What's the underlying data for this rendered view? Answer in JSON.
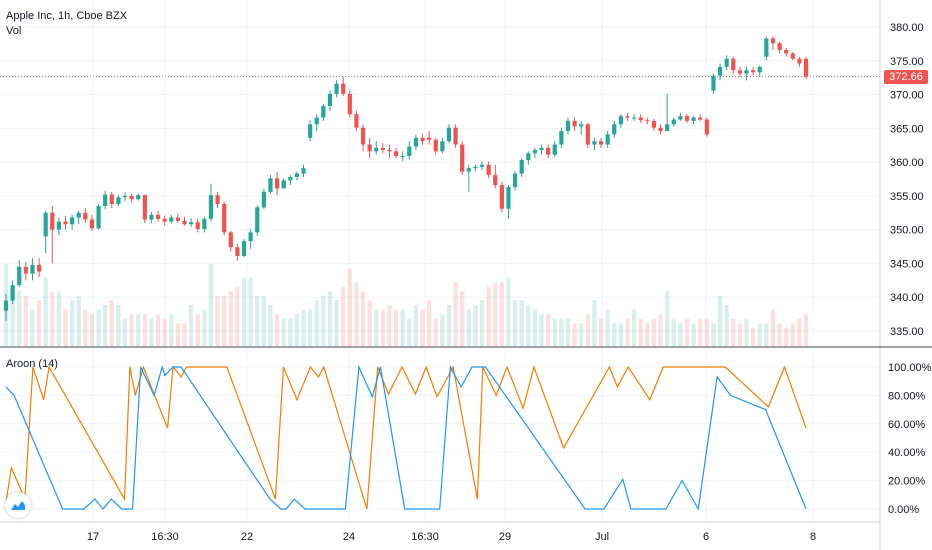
{
  "header": {
    "symbol_label": "Apple Inc, 1h, Cboe BZX",
    "volume_label": "Vol",
    "indicator_label": "Aroon (14)"
  },
  "last_price": "372.66",
  "colors": {
    "up": "#26a69a",
    "down": "#ef5350",
    "aroon_up": "#f57c00",
    "aroon_down": "#2196f3",
    "price_tag": "#ef5350"
  },
  "logo": {
    "icon": "tradingview-logo-icon"
  },
  "chart_data": [
    {
      "type": "candlestick",
      "title": "Apple Inc, 1h, Cboe BZX",
      "ylim": [
        332,
        383
      ],
      "y_ticks": [
        "380.00",
        "375.00",
        "370.00",
        "365.00",
        "360.00",
        "355.00",
        "350.00",
        "345.00",
        "340.00",
        "335.00"
      ],
      "last_value": 372.66,
      "ohlc": [
        [
          338.0,
          340.5,
          336.5,
          339.5
        ],
        [
          339.5,
          342.5,
          339.0,
          341.8
        ],
        [
          341.8,
          345.5,
          341.5,
          344.5
        ],
        [
          344.5,
          345.2,
          342.5,
          343.5
        ],
        [
          343.5,
          345.8,
          342.5,
          344.8
        ],
        [
          344.8,
          345.8,
          343.0,
          343.8
        ],
        [
          349.0,
          352.8,
          346.5,
          352.5
        ],
        [
          352.5,
          353.5,
          345.0,
          350.0
        ],
        [
          350.0,
          351.8,
          349.2,
          351.2
        ],
        [
          351.2,
          352.0,
          350.0,
          350.8
        ],
        [
          350.8,
          352.2,
          350.0,
          351.8
        ],
        [
          351.8,
          352.8,
          350.8,
          352.5
        ],
        [
          352.5,
          353.2,
          351.0,
          351.5
        ],
        [
          351.5,
          352.2,
          349.8,
          350.2
        ],
        [
          350.2,
          353.8,
          350.0,
          353.5
        ],
        [
          353.5,
          355.8,
          353.0,
          355.2
        ],
        [
          355.2,
          355.6,
          353.2,
          353.8
        ],
        [
          353.8,
          355.2,
          353.5,
          354.8
        ],
        [
          354.8,
          355.5,
          354.2,
          355.0
        ],
        [
          355.0,
          355.3,
          354.0,
          354.5
        ],
        [
          354.5,
          355.4,
          354.3,
          355.1
        ],
        [
          355.1,
          355.2,
          351.0,
          351.5
        ],
        [
          351.5,
          352.6,
          351.0,
          352.2
        ],
        [
          352.2,
          352.8,
          351.2,
          351.6
        ],
        [
          351.6,
          352.1,
          350.6,
          351.2
        ],
        [
          351.2,
          352.2,
          350.9,
          351.8
        ],
        [
          351.8,
          352.4,
          351.0,
          351.3
        ],
        [
          351.3,
          351.9,
          350.6,
          350.8
        ],
        [
          350.8,
          351.7,
          350.4,
          351.1
        ],
        [
          351.1,
          351.6,
          349.6,
          350.1
        ],
        [
          350.1,
          351.9,
          349.6,
          351.6
        ],
        [
          351.6,
          356.8,
          351.2,
          355.1
        ],
        [
          355.1,
          355.6,
          353.2,
          353.8
        ],
        [
          353.8,
          354.1,
          349.2,
          349.6
        ],
        [
          349.6,
          349.8,
          346.8,
          347.4
        ],
        [
          347.4,
          347.9,
          345.4,
          346.1
        ],
        [
          346.1,
          348.6,
          345.9,
          348.3
        ],
        [
          348.3,
          350.1,
          347.1,
          349.6
        ],
        [
          349.6,
          353.6,
          349.1,
          353.3
        ],
        [
          353.3,
          356.1,
          353.1,
          355.6
        ],
        [
          355.6,
          358.1,
          355.3,
          357.6
        ],
        [
          357.6,
          358.6,
          355.1,
          356.1
        ],
        [
          356.1,
          357.6,
          356.1,
          357.3
        ],
        [
          357.3,
          358.1,
          356.6,
          357.8
        ],
        [
          357.8,
          358.6,
          357.3,
          358.3
        ],
        [
          358.3,
          359.6,
          357.8,
          359.1
        ],
        [
          363.6,
          366.2,
          363.1,
          365.6
        ],
        [
          365.6,
          367.1,
          364.6,
          366.6
        ],
        [
          366.6,
          368.6,
          366.1,
          368.3
        ],
        [
          368.3,
          370.6,
          367.6,
          370.1
        ],
        [
          370.1,
          372.1,
          369.6,
          371.6
        ],
        [
          371.6,
          372.6,
          369.8,
          370.1
        ],
        [
          370.1,
          370.6,
          366.6,
          367.1
        ],
        [
          367.1,
          367.6,
          364.6,
          365.1
        ],
        [
          365.1,
          365.6,
          361.6,
          362.6
        ],
        [
          362.6,
          363.6,
          360.6,
          361.6
        ],
        [
          361.6,
          363.1,
          361.1,
          362.1
        ],
        [
          362.1,
          362.8,
          361.3,
          361.8
        ],
        [
          361.8,
          362.6,
          360.6,
          361.6
        ],
        [
          361.6,
          362.1,
          360.6,
          360.9
        ],
        [
          360.9,
          361.6,
          360.1,
          360.9
        ],
        [
          360.9,
          363.1,
          360.4,
          362.3
        ],
        [
          362.3,
          364.1,
          361.8,
          363.6
        ],
        [
          363.6,
          364.1,
          362.6,
          363.1
        ],
        [
          363.6,
          364.6,
          362.6,
          363.3
        ],
        [
          363.3,
          363.6,
          361.1,
          361.6
        ],
        [
          361.6,
          363.6,
          361.3,
          363.1
        ],
        [
          363.1,
          365.6,
          362.8,
          365.1
        ],
        [
          365.1,
          365.6,
          362.1,
          362.6
        ],
        [
          362.6,
          363.1,
          358.1,
          358.6
        ],
        [
          358.6,
          359.6,
          355.6,
          359.1
        ],
        [
          359.1,
          359.6,
          358.6,
          359.3
        ],
        [
          359.3,
          360.1,
          358.8,
          359.6
        ],
        [
          359.6,
          360.1,
          357.6,
          358.1
        ],
        [
          358.1,
          359.6,
          356.1,
          356.6
        ],
        [
          356.6,
          357.1,
          352.6,
          353.1
        ],
        [
          353.1,
          356.6,
          351.6,
          356.3
        ],
        [
          356.3,
          358.6,
          355.8,
          358.3
        ],
        [
          358.3,
          360.6,
          357.8,
          360.3
        ],
        [
          360.3,
          361.6,
          359.6,
          361.3
        ],
        [
          361.3,
          362.1,
          360.6,
          361.8
        ],
        [
          361.8,
          362.6,
          361.1,
          362.1
        ],
        [
          362.1,
          362.6,
          360.6,
          361.1
        ],
        [
          361.1,
          363.1,
          360.8,
          362.6
        ],
        [
          362.6,
          365.1,
          362.1,
          364.6
        ],
        [
          364.6,
          366.6,
          364.1,
          366.1
        ],
        [
          366.1,
          366.6,
          364.6,
          365.3
        ],
        [
          365.3,
          366.1,
          364.1,
          365.6
        ],
        [
          365.6,
          365.8,
          362.1,
          362.6
        ],
        [
          362.6,
          363.6,
          361.8,
          363.1
        ],
        [
          363.1,
          363.6,
          362.1,
          362.6
        ],
        [
          362.6,
          364.6,
          362.1,
          364.1
        ],
        [
          364.1,
          366.1,
          363.6,
          365.6
        ],
        [
          365.6,
          367.1,
          365.1,
          366.8
        ],
        [
          366.8,
          367.3,
          366.1,
          366.6
        ],
        [
          366.6,
          367.1,
          366.1,
          366.6
        ],
        [
          366.6,
          367.1,
          365.8,
          366.2
        ],
        [
          366.2,
          366.6,
          365.6,
          366.1
        ],
        [
          366.1,
          366.4,
          364.6,
          365.1
        ],
        [
          365.1,
          365.6,
          364.1,
          364.6
        ],
        [
          364.6,
          370.1,
          364.6,
          365.6
        ],
        [
          365.6,
          366.6,
          365.3,
          366.3
        ],
        [
          366.3,
          367.3,
          366.1,
          366.8
        ],
        [
          366.8,
          367.1,
          365.8,
          366.1
        ],
        [
          366.1,
          366.8,
          365.6,
          366.6
        ],
        [
          366.6,
          367.1,
          366.1,
          366.3
        ],
        [
          366.3,
          366.6,
          363.8,
          364.1
        ],
        [
          370.6,
          373.1,
          370.1,
          372.8
        ],
        [
          372.8,
          374.6,
          372.1,
          374.1
        ],
        [
          374.1,
          375.8,
          373.6,
          375.3
        ],
        [
          375.3,
          375.6,
          373.1,
          373.6
        ],
        [
          373.6,
          374.1,
          372.6,
          373.1
        ],
        [
          373.1,
          374.1,
          372.1,
          373.6
        ],
        [
          373.6,
          374.1,
          372.8,
          373.3
        ],
        [
          373.3,
          374.3,
          372.6,
          374.1
        ],
        [
          375.6,
          378.6,
          375.1,
          378.3
        ],
        [
          378.3,
          378.6,
          376.6,
          377.6
        ],
        [
          377.6,
          377.8,
          376.1,
          376.6
        ],
        [
          376.6,
          376.9,
          375.6,
          376.1
        ],
        [
          376.1,
          376.3,
          375.1,
          375.3
        ],
        [
          375.3,
          375.6,
          374.1,
          374.6
        ],
        [
          375.3,
          375.6,
          372.3,
          372.66
        ]
      ]
    },
    {
      "type": "bar",
      "title": "Vol",
      "values": [
        18,
        11,
        12,
        11,
        8,
        10,
        15,
        12,
        12,
        8,
        10,
        11,
        8,
        7,
        8,
        9,
        10,
        9,
        6,
        7,
        7,
        7,
        6,
        7,
        6,
        7,
        5,
        5,
        9,
        7,
        8,
        18,
        11,
        11,
        12,
        13,
        15,
        15,
        11,
        11,
        9,
        7,
        6,
        6,
        7,
        8,
        8,
        10,
        11,
        12,
        10,
        13,
        17,
        14,
        12,
        10,
        8,
        8,
        9,
        8,
        8,
        6,
        9,
        8,
        10,
        6,
        7,
        9,
        14,
        12,
        8,
        9,
        10,
        13,
        14,
        14,
        15,
        10,
        10,
        9,
        8,
        7,
        7,
        6,
        6,
        6,
        5,
        5,
        7,
        10,
        6,
        8,
        5,
        5,
        6,
        8,
        6,
        5,
        6,
        7,
        12,
        6,
        5,
        6,
        5,
        6,
        6,
        5,
        11,
        9,
        6,
        5,
        6,
        4,
        5,
        5,
        8,
        5,
        4,
        5,
        6,
        7,
        5
      ]
    },
    {
      "type": "line",
      "title": "Aroon (14)",
      "ylim": [
        -5,
        108
      ],
      "y_ticks": [
        "100.00%",
        "80.00%",
        "60.00%",
        "40.00%",
        "20.00%",
        "0.00%"
      ],
      "series": [
        {
          "points": [
            [
              0,
              5
            ],
            [
              2,
              29
            ],
            [
              7,
              7
            ],
            [
              10,
              100
            ],
            [
              14,
              77
            ],
            [
              16,
              100
            ],
            [
              44,
              7
            ],
            [
              46,
              100
            ],
            [
              48,
              80
            ],
            [
              51,
              100
            ],
            [
              60,
              57
            ],
            [
              62,
              100
            ],
            [
              65,
              93
            ],
            [
              67,
              100
            ],
            [
              82,
              100
            ],
            [
              100,
              7
            ],
            [
              103,
              100
            ],
            [
              108,
              77
            ],
            [
              113,
              100
            ],
            [
              116,
              93
            ],
            [
              118,
              100
            ],
            [
              134,
              0
            ],
            [
              138,
              100
            ],
            [
              142,
              81
            ],
            [
              147,
              100
            ],
            [
              152,
              81
            ],
            [
              156,
              100
            ],
            [
              160,
              79
            ],
            [
              166,
              100
            ],
            [
              175,
              7
            ],
            [
              177,
              100
            ],
            [
              182,
              80
            ],
            [
              186,
              100
            ],
            [
              192,
              71
            ],
            [
              196,
              100
            ],
            [
              207,
              43
            ],
            [
              224,
              100
            ],
            [
              227,
              86
            ],
            [
              231,
              100
            ],
            [
              239,
              77
            ],
            [
              244,
              100
            ],
            [
              259,
              100
            ],
            [
              267,
              100
            ],
            [
              283,
              72
            ],
            [
              289,
              100
            ],
            [
              297,
              57
            ]
          ]
        },
        {
          "points": [
            [
              0,
              86
            ],
            [
              3,
              80
            ],
            [
              21,
              0
            ],
            [
              29,
              0
            ],
            [
              33,
              7
            ],
            [
              36,
              0
            ],
            [
              39,
              7
            ],
            [
              43,
              0
            ],
            [
              47,
              0
            ],
            [
              50,
              100
            ],
            [
              55,
              80
            ],
            [
              58,
              100
            ],
            [
              59,
              94
            ],
            [
              62,
              100
            ],
            [
              65,
              100
            ],
            [
              98,
              7
            ],
            [
              102,
              0
            ],
            [
              104,
              0
            ],
            [
              107,
              7
            ],
            [
              111,
              0
            ],
            [
              126,
              0
            ],
            [
              131,
              100
            ],
            [
              136,
              79
            ],
            [
              139,
              100
            ],
            [
              148,
              0
            ],
            [
              161,
              0
            ],
            [
              165,
              100
            ],
            [
              169,
              86
            ],
            [
              173,
              100
            ],
            [
              178,
              100
            ],
            [
              215,
              0
            ],
            [
              222,
              0
            ],
            [
              229,
              21
            ],
            [
              232,
              0
            ],
            [
              245,
              0
            ],
            [
              251,
              20
            ],
            [
              257,
              0
            ],
            [
              264,
              93
            ],
            [
              269,
              80
            ],
            [
              282,
              70
            ],
            [
              297,
              0
            ]
          ]
        }
      ]
    }
  ],
  "x_ticks": [
    "17",
    "16:30",
    "22",
    "24",
    "16:30",
    "29",
    "Jul",
    "6",
    "8"
  ]
}
